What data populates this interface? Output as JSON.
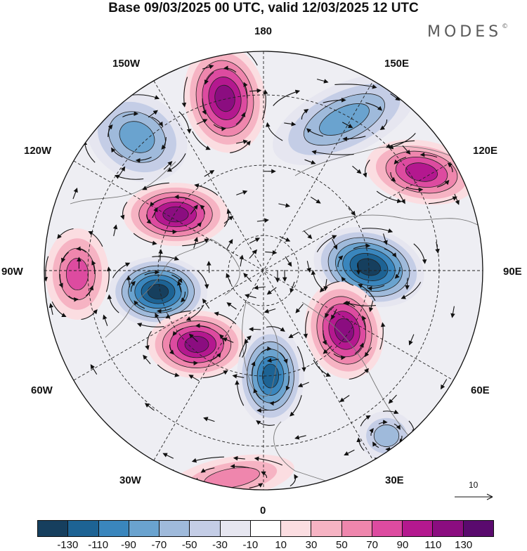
{
  "title": "Base 09/03/2025 00 UTC, valid 12/03/2025 12 UTC",
  "brand": "MODES",
  "brand_mark": "©",
  "longitude_labels": {
    "lon_180": "180",
    "lon_150E": "150E",
    "lon_120E": "120E",
    "lon_90E": "90E",
    "lon_60E": "60E",
    "lon_30E": "30E",
    "lon_0": "0",
    "lon_30W": "30W",
    "lon_60W": "60W",
    "lon_90W": "90W",
    "lon_120W": "120W",
    "lon_150W": "150W"
  },
  "vector_reference": {
    "label": "10"
  },
  "colorbar": {
    "colors": [
      "#163f5e",
      "#1d6394",
      "#3a86bd",
      "#6aa3cf",
      "#9fbadb",
      "#c4cde6",
      "#e6e6f0",
      "#ffffff",
      "#fbdde1",
      "#f6b3c3",
      "#ef86ad",
      "#dd4ba0",
      "#b4188f",
      "#8b0d80",
      "#5a0a6e"
    ],
    "labels": [
      "-130",
      "-110",
      "-90",
      "-70",
      "-50",
      "-30",
      "-10",
      "10",
      "30",
      "50",
      "70",
      "90",
      "110",
      "130"
    ]
  },
  "anomaly_centers": [
    {
      "name": "pos-north-pacific",
      "kind": "positive",
      "strength": 4
    },
    {
      "name": "neg-pacific-arctic",
      "kind": "negative",
      "strength": 2
    },
    {
      "name": "neg-alaska",
      "kind": "negative",
      "strength": 2
    },
    {
      "name": "pos-siberia",
      "kind": "positive",
      "strength": 3
    },
    {
      "name": "pos-canada",
      "kind": "positive",
      "strength": 4
    },
    {
      "name": "neg-central-asia",
      "kind": "negative",
      "strength": 5
    },
    {
      "name": "neg-hudson-bay",
      "kind": "negative",
      "strength": 5
    },
    {
      "name": "pos-central-us",
      "kind": "positive",
      "strength": 2
    },
    {
      "name": "pos-north-atlantic",
      "kind": "positive",
      "strength": 4
    },
    {
      "name": "pos-ural",
      "kind": "positive",
      "strength": 4
    },
    {
      "name": "neg-norwegian-sea",
      "kind": "negative",
      "strength": 4
    },
    {
      "name": "pos-north-africa",
      "kind": "positive",
      "strength": 1
    },
    {
      "name": "neg-eastern-med",
      "kind": "negative",
      "strength": 1
    }
  ]
}
